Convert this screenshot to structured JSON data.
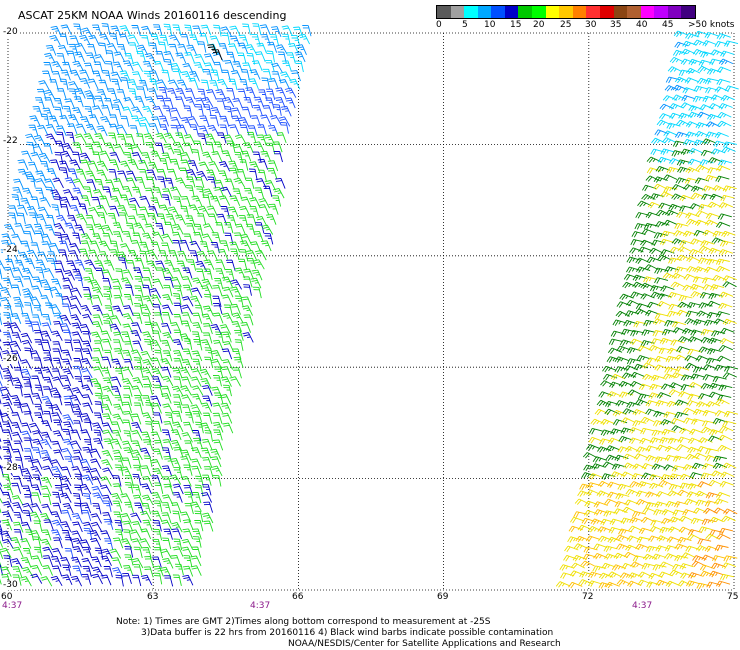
{
  "title": "ASCAT 25KM NOAA Winds 20160116 descending",
  "colorbar": {
    "colors": [
      "#5a5a5a",
      "#a0a0a0",
      "#00ffff",
      "#00a8ff",
      "#0050ff",
      "#0000c8",
      "#00c800",
      "#00ff00",
      "#ffff00",
      "#ffc800",
      "#ff8000",
      "#ff3030",
      "#e00000",
      "#8b4513",
      "#b06030",
      "#ff00ff",
      "#c000ff",
      "#8000c0",
      "#400080"
    ],
    "labels": [
      "0",
      "5",
      "10",
      "15",
      "20",
      "25",
      "30",
      "35",
      "40",
      "45",
      ">50 knots"
    ]
  },
  "axes": {
    "x_ticks": [
      "60",
      "63",
      "66",
      "69",
      "72",
      "75"
    ],
    "y_ticks": [
      "-20",
      "-22",
      "-24",
      "-26",
      "-28",
      "-30"
    ]
  },
  "times": [
    "4:37",
    "4:37",
    "4:37"
  ],
  "notes": {
    "line1": "Note: 1) Times are GMT 2)Times along bottom correspond to measurement at -25S",
    "line2": "3)Data buffer is 22 hrs from 20160116 4) Black wind barbs indicate possible contamination",
    "line3": "NOAA/NESDIS/Center for Satellite Applications and Research"
  },
  "wind_colors": {
    "cyan": "#00d8ff",
    "light_blue": "#0090ff",
    "blue": "#1e50ff",
    "dark_blue": "#0000c8",
    "green": "#22dd22",
    "dark_green": "#008000",
    "yellow": "#f0e000",
    "gold": "#ffc000",
    "orange": "#ff9000"
  }
}
